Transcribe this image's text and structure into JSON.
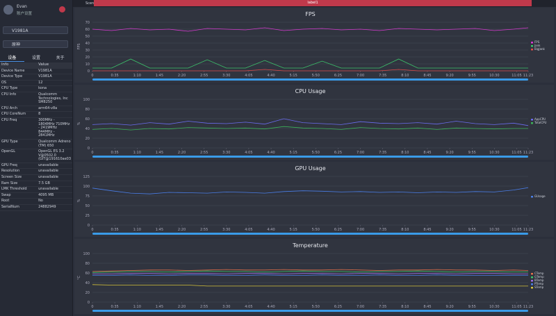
{
  "sidebar": {
    "user": "Evan",
    "account": "账户设置",
    "device": "V1981A",
    "app": "原神",
    "tabs": [
      "设备",
      "设置",
      "关于"
    ],
    "table": {
      "header": [
        "Info",
        "Value"
      ],
      "rows": [
        [
          "Device Name",
          "V1981A"
        ],
        [
          "Device Type",
          "V1981A"
        ],
        [
          "OS",
          "12"
        ],
        [
          "CPU Type",
          "kona"
        ],
        [
          "CPU Info",
          "Qualcomm Technologies, Inc SM8250"
        ],
        [
          "CPU Arch",
          "arm64-v8a"
        ],
        [
          "CPU CoreNum",
          "8"
        ],
        [
          "CPU Freq",
          "300MHz - 1804MHz 710MHz - 2419MHz 844MHz - 2841MHz"
        ],
        [
          "GPU Type",
          "Qualcomm Adreno (TM) 650"
        ],
        [
          "OpenGL",
          "OpenGL ES 3.2 V@0502.0 (GIT@191610ae03"
        ],
        [
          "GPU Freq",
          "unavailable"
        ],
        [
          "Resolution",
          "unavailable"
        ],
        [
          "Screen Size",
          "unavailable"
        ],
        [
          "Ram Size",
          "7.5 GB"
        ],
        [
          "LMK Threshold",
          "unavailable"
        ],
        [
          "Swap",
          "4095 MB"
        ],
        [
          "Root",
          "No"
        ],
        [
          "SerialNum",
          "24882949"
        ]
      ]
    }
  },
  "tabbar": {
    "scene": "SceneTab",
    "label": "label1"
  },
  "chart_data": [
    {
      "type": "line",
      "title": "FPS",
      "y_label": "FPS",
      "x": [
        0,
        30,
        60,
        90,
        120,
        150,
        180,
        210,
        240,
        270,
        300,
        330,
        360,
        390,
        420,
        450,
        480,
        510,
        540,
        570,
        600,
        630,
        660,
        683
      ],
      "xlim": [
        0,
        683
      ],
      "xticks": [
        0,
        {
          "value": 35,
          "label": "0:35"
        },
        {
          "value": 70,
          "label": "1:10"
        },
        {
          "value": 105,
          "label": "1:45"
        },
        {
          "value": 140,
          "label": "2:20"
        },
        {
          "value": 175,
          "label": "2:55"
        },
        {
          "value": 210,
          "label": "3:30"
        },
        {
          "value": 245,
          "label": "4:05"
        },
        {
          "value": 280,
          "label": "4:40"
        },
        {
          "value": 315,
          "label": "5:15"
        },
        {
          "value": 350,
          "label": "5:50"
        },
        {
          "value": 385,
          "label": "6:25"
        },
        {
          "value": 420,
          "label": "7:00"
        },
        {
          "value": 455,
          "label": "7:35"
        },
        {
          "value": 490,
          "label": "8:10"
        },
        {
          "value": 525,
          "label": "8:45"
        },
        {
          "value": 560,
          "label": "9:20"
        },
        {
          "value": 595,
          "label": "9:55"
        },
        {
          "value": 630,
          "label": "10:30"
        },
        {
          "value": 665,
          "label": "11:05"
        },
        {
          "value": 683,
          "label": "11:23"
        }
      ],
      "ylim": [
        0,
        70
      ],
      "yticks": [
        0,
        10,
        20,
        30,
        40,
        50,
        60,
        70
      ],
      "series": [
        {
          "name": "FPS",
          "color": "#d63bd0",
          "values": [
            60,
            58,
            61,
            59,
            60,
            57,
            61,
            60,
            59,
            62,
            58,
            60,
            61,
            59,
            60,
            58,
            61,
            60,
            59,
            60,
            61,
            58,
            60,
            62
          ]
        },
        {
          "name": "Jank",
          "color": "#3cc46b",
          "values": [
            4,
            4,
            17,
            4,
            4,
            4,
            16,
            4,
            4,
            15,
            4,
            4,
            14,
            4,
            4,
            4,
            17,
            4,
            4,
            4,
            4,
            4,
            4,
            4
          ]
        },
        {
          "name": "BigJank",
          "color": "#e04a4a",
          "values": [
            0,
            0,
            0,
            0,
            0,
            0,
            0,
            0,
            0,
            2,
            0,
            0,
            0,
            0,
            0,
            0,
            2,
            0,
            0,
            0,
            0,
            0,
            0,
            0
          ]
        }
      ]
    },
    {
      "type": "line",
      "title": "CPU Usage",
      "y_label": "%",
      "x": [
        0,
        30,
        60,
        90,
        120,
        150,
        180,
        210,
        240,
        270,
        300,
        330,
        360,
        390,
        420,
        450,
        480,
        510,
        540,
        570,
        600,
        630,
        660,
        683
      ],
      "xlim": [
        0,
        683
      ],
      "xticks": [
        0,
        {
          "value": 35,
          "label": "0:35"
        },
        {
          "value": 70,
          "label": "1:10"
        },
        {
          "value": 105,
          "label": "1:45"
        },
        {
          "value": 140,
          "label": "2:20"
        },
        {
          "value": 175,
          "label": "2:55"
        },
        {
          "value": 210,
          "label": "3:30"
        },
        {
          "value": 245,
          "label": "4:05"
        },
        {
          "value": 280,
          "label": "4:40"
        },
        {
          "value": 315,
          "label": "5:15"
        },
        {
          "value": 350,
          "label": "5:50"
        },
        {
          "value": 385,
          "label": "6:25"
        },
        {
          "value": 420,
          "label": "7:00"
        },
        {
          "value": 455,
          "label": "7:35"
        },
        {
          "value": 490,
          "label": "8:10"
        },
        {
          "value": 525,
          "label": "8:45"
        },
        {
          "value": 560,
          "label": "9:20"
        },
        {
          "value": 595,
          "label": "9:55"
        },
        {
          "value": 630,
          "label": "10:30"
        },
        {
          "value": 665,
          "label": "11:05"
        },
        {
          "value": 683,
          "label": "11:23"
        }
      ],
      "ylim": [
        0,
        100
      ],
      "yticks": [
        0,
        20,
        40,
        60,
        80,
        100
      ],
      "series": [
        {
          "name": "AppCPU",
          "color": "#6a6cf0",
          "values": [
            48,
            50,
            47,
            52,
            49,
            55,
            51,
            50,
            53,
            49,
            60,
            52,
            50,
            48,
            54,
            51,
            50,
            52,
            49,
            55,
            50,
            48,
            51,
            46
          ]
        },
        {
          "name": "TotalCPU",
          "color": "#3cb35a",
          "values": [
            38,
            40,
            37,
            40,
            39,
            42,
            41,
            40,
            41,
            39,
            44,
            41,
            40,
            38,
            42,
            40,
            39,
            41,
            38,
            41,
            40,
            39,
            40,
            40
          ]
        }
      ]
    },
    {
      "type": "line",
      "title": "GPU Usage",
      "y_label": "%",
      "x": [
        0,
        30,
        60,
        90,
        120,
        150,
        180,
        210,
        240,
        270,
        300,
        330,
        360,
        390,
        420,
        450,
        480,
        510,
        540,
        570,
        600,
        630,
        660,
        683
      ],
      "xlim": [
        0,
        683
      ],
      "xticks": [
        0,
        {
          "value": 35,
          "label": "0:35"
        },
        {
          "value": 70,
          "label": "1:10"
        },
        {
          "value": 105,
          "label": "1:45"
        },
        {
          "value": 140,
          "label": "2:20"
        },
        {
          "value": 175,
          "label": "2:55"
        },
        {
          "value": 210,
          "label": "3:30"
        },
        {
          "value": 245,
          "label": "4:05"
        },
        {
          "value": 280,
          "label": "4:40"
        },
        {
          "value": 315,
          "label": "5:15"
        },
        {
          "value": 350,
          "label": "5:50"
        },
        {
          "value": 385,
          "label": "6:25"
        },
        {
          "value": 420,
          "label": "7:00"
        },
        {
          "value": 455,
          "label": "7:35"
        },
        {
          "value": 490,
          "label": "8:10"
        },
        {
          "value": 525,
          "label": "8:45"
        },
        {
          "value": 560,
          "label": "9:20"
        },
        {
          "value": 595,
          "label": "9:55"
        },
        {
          "value": 630,
          "label": "10:30"
        },
        {
          "value": 665,
          "label": "11:05"
        },
        {
          "value": 683,
          "label": "11:23"
        }
      ],
      "ylim": [
        0,
        125
      ],
      "yticks": [
        0,
        25,
        50,
        75,
        100,
        125
      ],
      "series": [
        {
          "name": "GUsage",
          "color": "#4a7ee8",
          "values": [
            95,
            88,
            82,
            80,
            84,
            83,
            82,
            85,
            84,
            82,
            86,
            88,
            87,
            85,
            86,
            84,
            85,
            83,
            85,
            84,
            86,
            85,
            90,
            96
          ]
        }
      ]
    },
    {
      "type": "line",
      "title": "Temperature",
      "y_label": "°C",
      "x": [
        0,
        30,
        60,
        90,
        120,
        150,
        180,
        210,
        240,
        270,
        300,
        330,
        360,
        390,
        420,
        450,
        480,
        510,
        540,
        570,
        600,
        630,
        660,
        683
      ],
      "xlim": [
        0,
        683
      ],
      "xticks": [
        0,
        {
          "value": 35,
          "label": "0:35"
        },
        {
          "value": 70,
          "label": "1:10"
        },
        {
          "value": 105,
          "label": "1:45"
        },
        {
          "value": 140,
          "label": "2:20"
        },
        {
          "value": 175,
          "label": "2:55"
        },
        {
          "value": 210,
          "label": "3:30"
        },
        {
          "value": 245,
          "label": "4:05"
        },
        {
          "value": 280,
          "label": "4:40"
        },
        {
          "value": 315,
          "label": "5:15"
        },
        {
          "value": 350,
          "label": "5:50"
        },
        {
          "value": 385,
          "label": "6:25"
        },
        {
          "value": 420,
          "label": "7:00"
        },
        {
          "value": 455,
          "label": "7:35"
        },
        {
          "value": 490,
          "label": "8:10"
        },
        {
          "value": 525,
          "label": "8:45"
        },
        {
          "value": 560,
          "label": "9:20"
        },
        {
          "value": 595,
          "label": "9:55"
        },
        {
          "value": 630,
          "label": "10:30"
        },
        {
          "value": 665,
          "label": "11:05"
        },
        {
          "value": 683,
          "label": "11:23"
        }
      ],
      "ylim": [
        0,
        100
      ],
      "yticks": [
        0,
        20,
        40,
        60,
        80,
        100
      ],
      "series": [
        {
          "name": "CTemp",
          "color": "#e0704a",
          "values": [
            63,
            64,
            65,
            66,
            66,
            65,
            66,
            67,
            66,
            66,
            67,
            66,
            66,
            67,
            66,
            65,
            66,
            66,
            67,
            66,
            66,
            65,
            66,
            65
          ]
        },
        {
          "name": "GTemp",
          "color": "#3cc46b",
          "values": [
            61,
            62,
            63,
            63,
            62,
            63,
            64,
            63,
            63,
            62,
            63,
            64,
            63,
            63,
            62,
            63,
            63,
            64,
            63,
            62,
            63,
            63,
            62,
            62
          ]
        },
        {
          "name": "BTemp",
          "color": "#9a6ae0",
          "values": [
            58,
            58,
            59,
            59,
            58,
            59,
            59,
            58,
            59,
            59,
            58,
            59,
            59,
            58,
            59,
            59,
            58,
            59,
            59,
            58,
            59,
            59,
            58,
            58
          ]
        },
        {
          "name": "PTemp",
          "color": "#4a7ee8",
          "values": [
            55,
            55,
            56,
            55,
            55,
            56,
            56,
            55,
            55,
            56,
            55,
            55,
            56,
            55,
            55,
            56,
            55,
            55,
            56,
            55,
            55,
            55,
            55,
            55
          ]
        },
        {
          "name": "STemp",
          "color": "#d4c23a",
          "values": [
            36,
            35,
            35,
            35,
            35,
            35,
            33,
            33,
            33,
            33,
            33,
            33,
            33,
            33,
            33,
            33,
            33,
            33,
            33,
            33,
            33,
            33,
            33,
            33
          ]
        }
      ]
    }
  ]
}
